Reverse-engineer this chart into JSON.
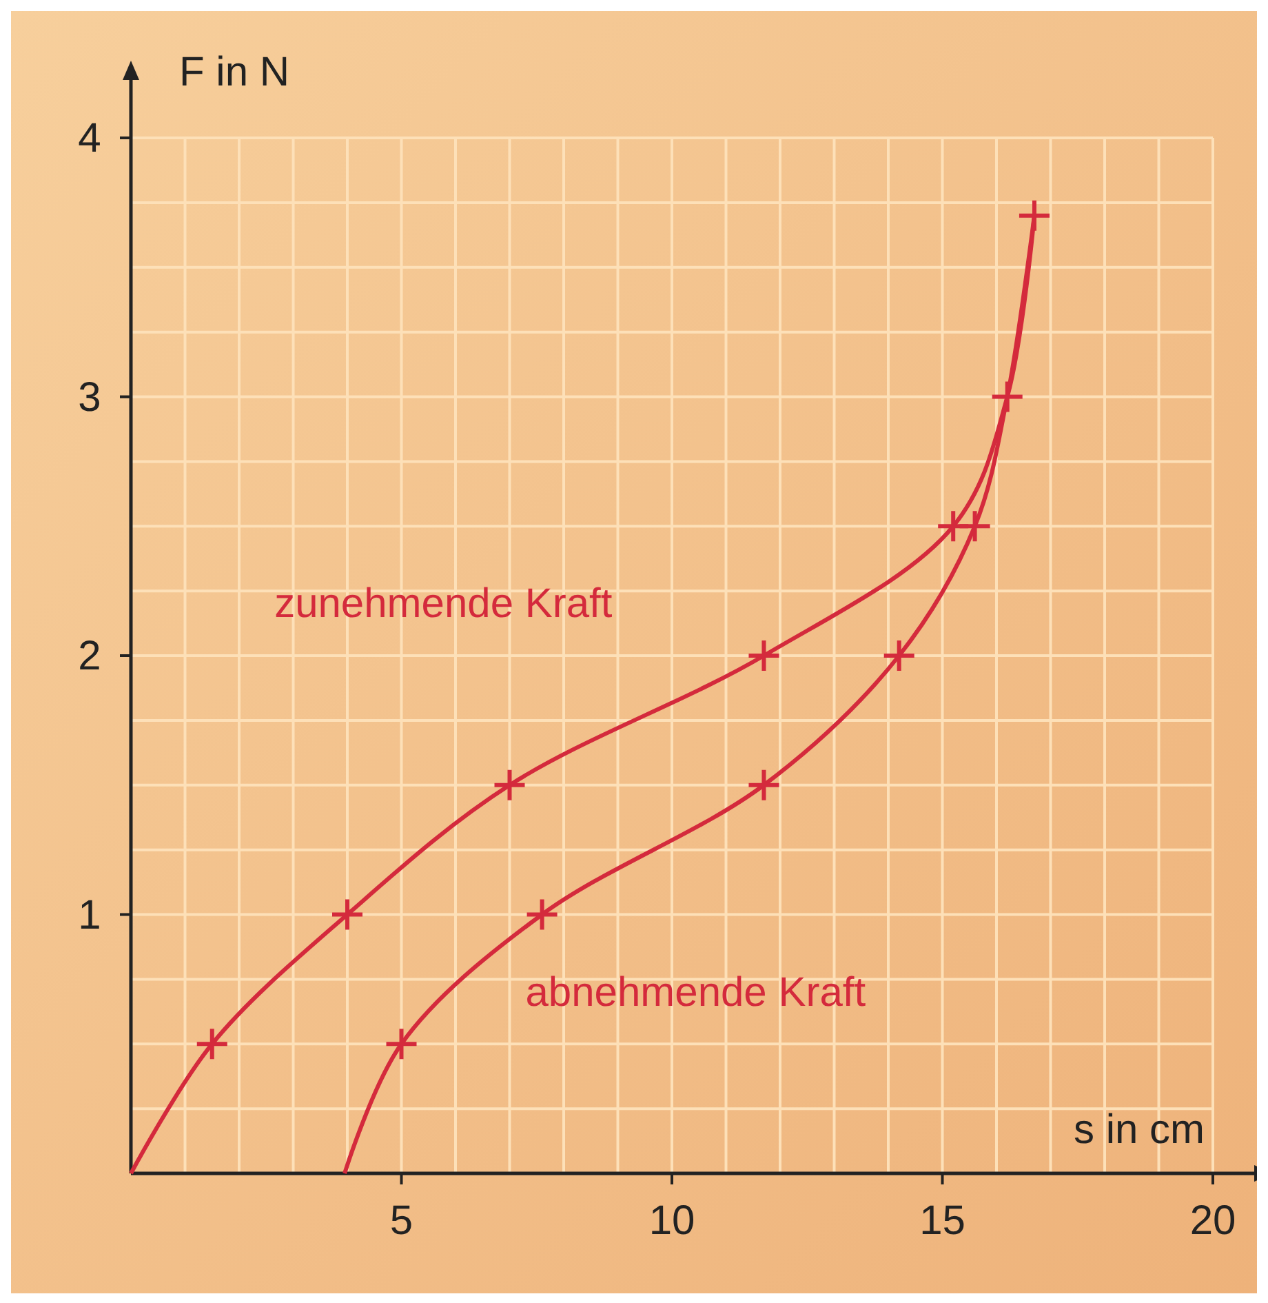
{
  "chart_data": {
    "type": "line",
    "xlabel": "s in cm",
    "ylabel": "F in N",
    "xlim": [
      0,
      20
    ],
    "ylim": [
      0,
      4
    ],
    "xticks": [
      {
        "value": 1,
        "label": null
      },
      {
        "value": 2,
        "label": null
      },
      {
        "value": 3,
        "label": null
      },
      {
        "value": 4,
        "label": null
      },
      5,
      {
        "value": 6,
        "label": null
      },
      {
        "value": 7,
        "label": null
      },
      {
        "value": 8,
        "label": null
      },
      {
        "value": 9,
        "label": null
      },
      10,
      {
        "value": 11,
        "label": null
      },
      {
        "value": 12,
        "label": null
      },
      {
        "value": 13,
        "label": null
      },
      {
        "value": 14,
        "label": null
      },
      15,
      {
        "value": 16,
        "label": null
      },
      {
        "value": 17,
        "label": null
      },
      {
        "value": 18,
        "label": null
      },
      {
        "value": 19,
        "label": null
      },
      20
    ],
    "yticks": [
      {
        "value": 0.25,
        "label": null
      },
      {
        "value": 0.5,
        "label": null
      },
      {
        "value": 0.75,
        "label": null
      },
      1,
      {
        "value": 1.25,
        "label": null
      },
      {
        "value": 1.5,
        "label": null
      },
      {
        "value": 1.75,
        "label": null
      },
      2,
      {
        "value": 2.25,
        "label": null
      },
      {
        "value": 2.5,
        "label": null
      },
      {
        "value": 2.75,
        "label": null
      },
      3,
      {
        "value": 3.25,
        "label": null
      },
      {
        "value": 3.5,
        "label": null
      },
      {
        "value": 3.75,
        "label": null
      },
      4
    ],
    "grid": true,
    "line_style": "solid",
    "series": [
      {
        "name": "zunehmende Kraft",
        "color": "#d42a3c",
        "marker": "none",
        "x": [
          0,
          1.5,
          4,
          7,
          11.7,
          15.2,
          16.2,
          16.7
        ],
        "values": [
          0,
          0.5,
          1,
          1.5,
          2,
          2.5,
          3,
          3.7
        ]
      },
      {
        "name": "abnehmende Kraft",
        "color": "#d42a3c",
        "marker": "none",
        "x": [
          16.7,
          16.2,
          15.6,
          14.2,
          11.7,
          7.6,
          5,
          3.95
        ],
        "values": [
          3.7,
          3,
          2.5,
          2,
          1.5,
          1,
          0.5,
          0
        ]
      },
      {
        "type": "scatter",
        "color": "#d42a3c",
        "marker": "cross",
        "x": [
          1.5,
          4,
          7,
          11.7,
          15.2,
          16.2,
          16.7
        ],
        "values": [
          0.5,
          1,
          1.5,
          2,
          2.5,
          3,
          3.7
        ]
      },
      {
        "type": "scatter",
        "color": "#d42a3c",
        "marker": "cross",
        "x": [
          15.6,
          14.2,
          11.7,
          7.6,
          5
        ],
        "values": [
          2.5,
          2,
          1.5,
          1,
          0.5
        ]
      }
    ]
  }
}
